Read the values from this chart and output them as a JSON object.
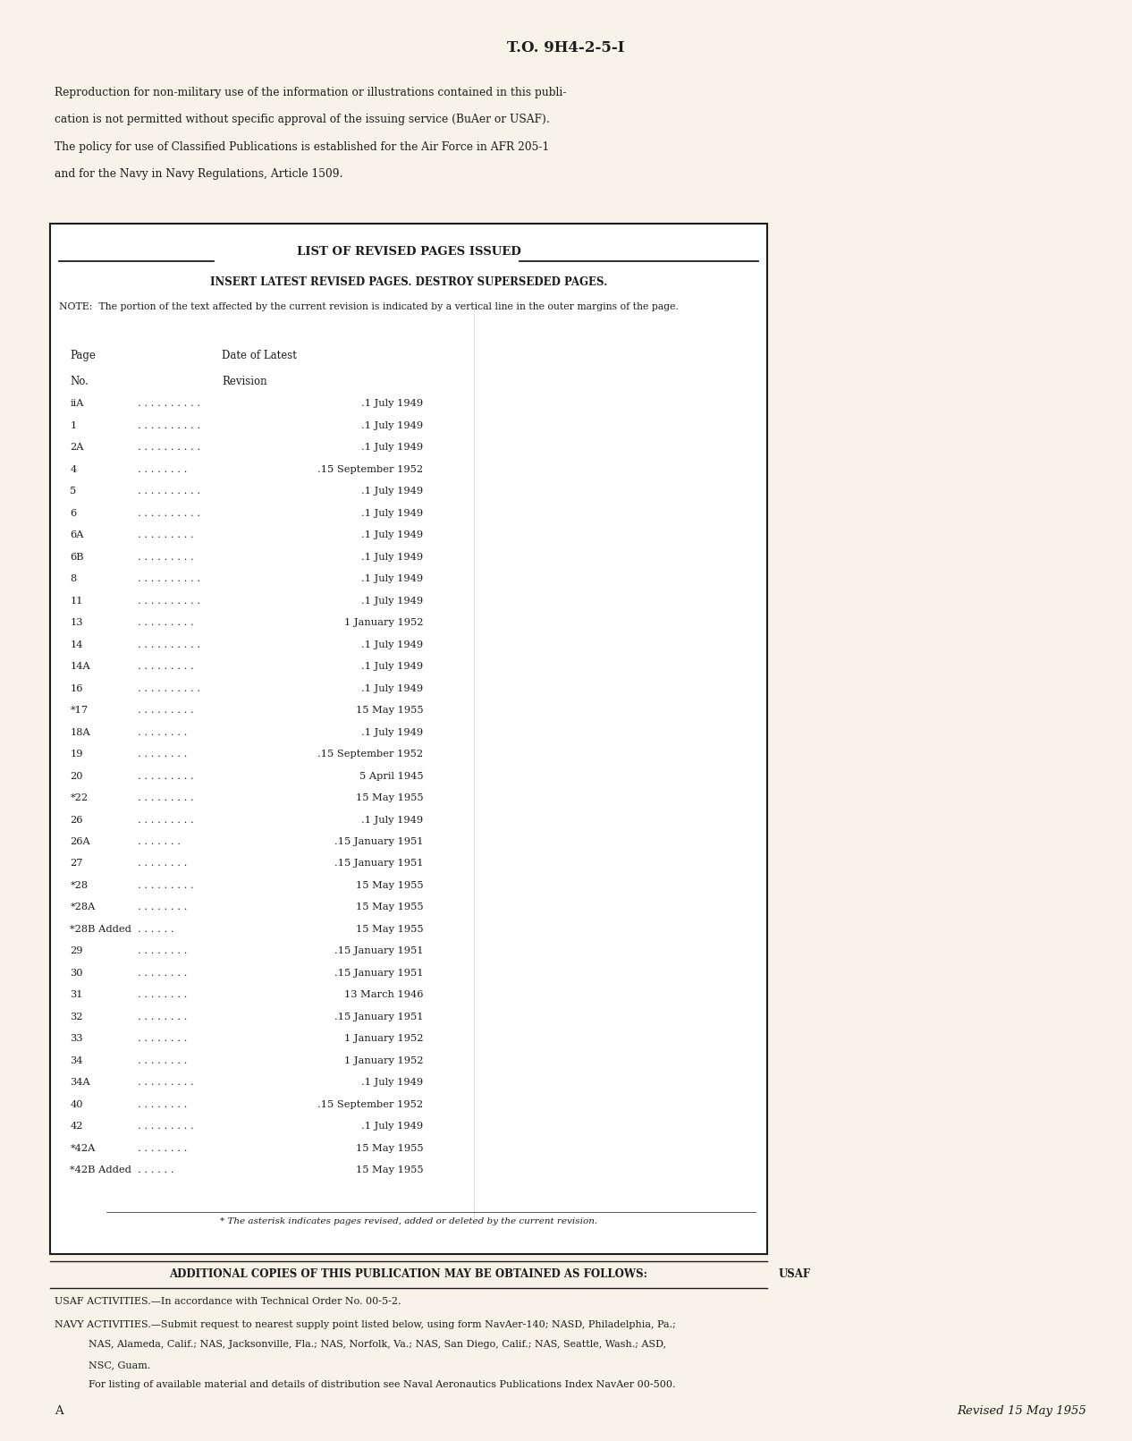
{
  "bg_color": "#e8e0cc",
  "page_bg": "#f7f3e8",
  "title": "T.O. 9H4-2-5-I",
  "intro_text_lines": [
    "Reproduction for non-military use of the information or illustrations contained in this publi-",
    "cation is not permitted without specific approval of the issuing service (BuAer or USAF).",
    "The policy for use of Classified Publications is established for the Air Force in AFR 205-1",
    "and for the Navy in Navy Regulations, Article 1509."
  ],
  "list_title": "LIST OF REVISED PAGES ISSUED",
  "insert_line": "INSERT LATEST REVISED PAGES. DESTROY SUPERSEDED PAGES.",
  "note_line": "NOTE:  The portion of the text affected by the current revision is indicated by a vertical line in the outer margins of the page.",
  "col_header1": "Page",
  "col_header2": "Date of Latest",
  "col_header3": "No.",
  "col_header4": "Revision",
  "entries": [
    [
      "iiA",
      ". . . . . . . . . .",
      ".1 July 1949"
    ],
    [
      "1",
      ". . . . . . . . . .",
      ".1 July 1949"
    ],
    [
      "2A",
      ". . . . . . . . . .",
      ".1 July 1949"
    ],
    [
      "4",
      ". . . . . . . .",
      ".15 September 1952"
    ],
    [
      "5",
      ". . . . . . . . . .",
      ".1 July 1949"
    ],
    [
      "6",
      ". . . . . . . . . .",
      ".1 July 1949"
    ],
    [
      "6A",
      ". . . . . . . . .",
      ".1 July 1949"
    ],
    [
      "6B",
      ". . . . . . . . .",
      ".1 July 1949"
    ],
    [
      "8",
      ". . . . . . . . . .",
      ".1 July 1949"
    ],
    [
      "11",
      ". . . . . . . . . .",
      ".1 July 1949"
    ],
    [
      "13",
      ". . . . . . . . .",
      "1 January 1952"
    ],
    [
      "14",
      ". . . . . . . . . .",
      ".1 July 1949"
    ],
    [
      "14A",
      ". . . . . . . . .",
      ".1 July 1949"
    ],
    [
      "16",
      ". . . . . . . . . .",
      ".1 July 1949"
    ],
    [
      "*17",
      ". . . . . . . . .",
      "15 May 1955"
    ],
    [
      "18A",
      ". . . . . . . .",
      ".1 July 1949"
    ],
    [
      "19",
      ". . . . . . . .",
      ".15 September 1952"
    ],
    [
      "20",
      ". . . . . . . . .",
      "5 April 1945"
    ],
    [
      "*22",
      ". . . . . . . . .",
      "15 May 1955"
    ],
    [
      "26",
      ". . . . . . . . .",
      ".1 July 1949"
    ],
    [
      "26A",
      ". . . . . . .",
      ".15 January 1951"
    ],
    [
      "27",
      ". . . . . . . .",
      ".15 January 1951"
    ],
    [
      "*28",
      ". . . . . . . . .",
      "15 May 1955"
    ],
    [
      "*28A",
      ". . . . . . . .",
      "15 May 1955"
    ],
    [
      "*28B Added",
      ". . . . . .",
      "15 May 1955"
    ],
    [
      "29",
      ". . . . . . . .",
      ".15 January 1951"
    ],
    [
      "30",
      ". . . . . . . .",
      ".15 January 1951"
    ],
    [
      "31",
      ". . . . . . . .",
      "13 March 1946"
    ],
    [
      "32",
      ". . . . . . . .",
      ".15 January 1951"
    ],
    [
      "33",
      ". . . . . . . .",
      "1 January 1952"
    ],
    [
      "34",
      ". . . . . . . .",
      "1 January 1952"
    ],
    [
      "34A",
      ". . . . . . . . .",
      ".1 July 1949"
    ],
    [
      "40",
      ". . . . . . . .",
      ".15 September 1952"
    ],
    [
      "42",
      ". . . . . . . . .",
      ".1 July 1949"
    ],
    [
      "*42A",
      ". . . . . . . .",
      "15 May 1955"
    ],
    [
      "*42B Added",
      ". . . . . .",
      "15 May 1955"
    ]
  ],
  "footnote": "* The asterisk indicates pages revised, added or deleted by the current revision.",
  "additional_title": "ADDITIONAL COPIES OF THIS PUBLICATION MAY BE OBTAINED AS FOLLOWS:",
  "usaf_label": "USAF",
  "usaf_line": "USAF ACTIVITIES.—In accordance with Technical Order No. 00-5-2.",
  "navy_line1": "NAVY ACTIVITIES.—Submit request to nearest supply point listed below, using form NavAer-140; NASD, Philadelphia, Pa.;",
  "navy_line2": "NAS, Alameda, Calif.; NAS, Jacksonville, Fla.; NAS, Norfolk, Va.; NAS, San Diego, Calif.; NAS, Seattle, Wash.; ASD,",
  "navy_line3": "NSC, Guam.",
  "listing_line": "For listing of available material and details of distribution see Naval Aeronautics Publications Index NavAer 00-500.",
  "bottom_left": "A",
  "bottom_right": "Revised 15 May 1955",
  "dot_bullet": "•"
}
